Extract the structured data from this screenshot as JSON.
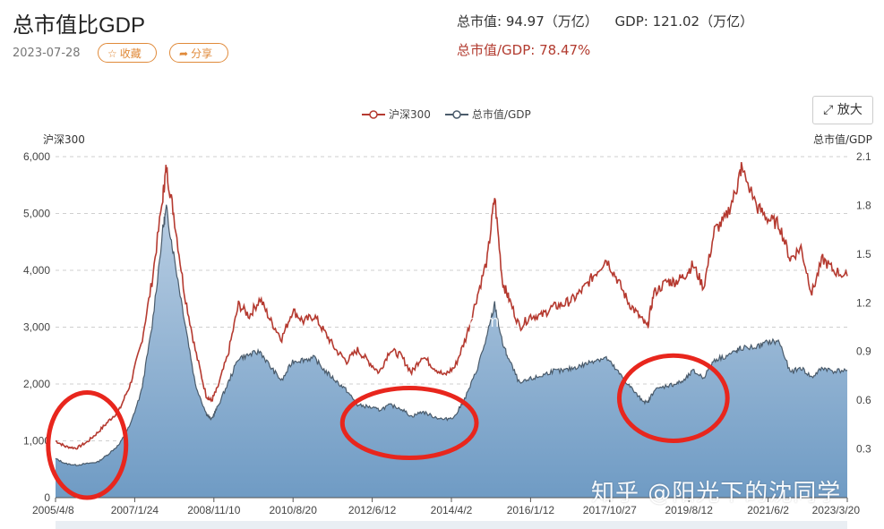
{
  "page": {
    "title": "总市值比GDP",
    "date": "2023-07-28",
    "favorite_label": "收藏",
    "share_label": "分享",
    "market_cap_label": "总市值: 94.97（万亿）",
    "gdp_label": "GDP: 121.02（万亿）",
    "ratio_label": "总市值/GDP: 78.47%",
    "expand_label": "放大",
    "watermark": "知乎 @阳光下的沈同学",
    "site_watermark": "legulegu.com"
  },
  "colors": {
    "hs300": "#b53a30",
    "ratio_line": "#4a5b6b",
    "ratio_fill_top": "#a9c2dc",
    "ratio_fill_bottom": "#6f9bc4",
    "circle": "#e8261d"
  },
  "chart_data": {
    "type": "line",
    "legend": [
      "沪深300",
      "总市值/GDP"
    ],
    "y_left": {
      "label": "沪深300",
      "ticks": [
        "0",
        "1,000",
        "2,000",
        "3,000",
        "4,000",
        "5,000",
        "6,000"
      ],
      "range": [
        0,
        6000
      ]
    },
    "y_right": {
      "label": "总市值/GDP",
      "ticks": [
        "0.3",
        "0.6",
        "0.9",
        "1.2",
        "1.5",
        "1.8",
        "2.1"
      ],
      "range": [
        0,
        2.1
      ]
    },
    "x_ticks": [
      "2005/4/8",
      "2007/1/24",
      "2008/11/10",
      "2010/8/20",
      "2012/6/12",
      "2014/4/2",
      "2016/1/12",
      "2017/10/27",
      "2019/8/12",
      "2021/6/2",
      "2023/3/20"
    ],
    "x_range": [
      2005.27,
      2023.57
    ],
    "series": [
      {
        "name": "沪深300",
        "points": [
          [
            2005.27,
            1000
          ],
          [
            2005.5,
            900
          ],
          [
            2005.75,
            870
          ],
          [
            2006.0,
            980
          ],
          [
            2006.25,
            1150
          ],
          [
            2006.5,
            1350
          ],
          [
            2006.75,
            1550
          ],
          [
            2007.0,
            2000
          ],
          [
            2007.25,
            2700
          ],
          [
            2007.5,
            3800
          ],
          [
            2007.75,
            5300
          ],
          [
            2007.83,
            5800
          ],
          [
            2008.0,
            5000
          ],
          [
            2008.25,
            3600
          ],
          [
            2008.5,
            2600
          ],
          [
            2008.75,
            1800
          ],
          [
            2008.87,
            1700
          ],
          [
            2009.0,
            1900
          ],
          [
            2009.25,
            2500
          ],
          [
            2009.5,
            3400
          ],
          [
            2009.75,
            3200
          ],
          [
            2010.0,
            3500
          ],
          [
            2010.25,
            3100
          ],
          [
            2010.5,
            2800
          ],
          [
            2010.75,
            3300
          ],
          [
            2011.0,
            3100
          ],
          [
            2011.25,
            3200
          ],
          [
            2011.5,
            2900
          ],
          [
            2011.75,
            2600
          ],
          [
            2012.0,
            2400
          ],
          [
            2012.25,
            2600
          ],
          [
            2012.5,
            2400
          ],
          [
            2012.75,
            2200
          ],
          [
            2013.0,
            2600
          ],
          [
            2013.25,
            2500
          ],
          [
            2013.5,
            2200
          ],
          [
            2013.75,
            2500
          ],
          [
            2014.0,
            2300
          ],
          [
            2014.25,
            2150
          ],
          [
            2014.5,
            2300
          ],
          [
            2014.75,
            2800
          ],
          [
            2015.0,
            3500
          ],
          [
            2015.25,
            4200
          ],
          [
            2015.42,
            5300
          ],
          [
            2015.6,
            3800
          ],
          [
            2015.75,
            3500
          ],
          [
            2016.0,
            3000
          ],
          [
            2016.25,
            3200
          ],
          [
            2016.5,
            3200
          ],
          [
            2016.75,
            3350
          ],
          [
            2017.0,
            3400
          ],
          [
            2017.25,
            3500
          ],
          [
            2017.5,
            3700
          ],
          [
            2017.75,
            3950
          ],
          [
            2018.0,
            4200
          ],
          [
            2018.25,
            3850
          ],
          [
            2018.5,
            3450
          ],
          [
            2018.75,
            3200
          ],
          [
            2018.95,
            3000
          ],
          [
            2019.1,
            3600
          ],
          [
            2019.4,
            3800
          ],
          [
            2019.6,
            3800
          ],
          [
            2019.8,
            3900
          ],
          [
            2020.0,
            4100
          ],
          [
            2020.25,
            3700
          ],
          [
            2020.5,
            4700
          ],
          [
            2020.75,
            4900
          ],
          [
            2021.0,
            5400
          ],
          [
            2021.12,
            5800
          ],
          [
            2021.5,
            5100
          ],
          [
            2021.75,
            4900
          ],
          [
            2022.0,
            4800
          ],
          [
            2022.25,
            4200
          ],
          [
            2022.5,
            4400
          ],
          [
            2022.75,
            3600
          ],
          [
            2023.0,
            4200
          ],
          [
            2023.25,
            4000
          ],
          [
            2023.57,
            3900
          ]
        ]
      },
      {
        "name": "总市值/GDP",
        "points": [
          [
            2005.27,
            0.24
          ],
          [
            2005.5,
            0.21
          ],
          [
            2005.75,
            0.2
          ],
          [
            2006.0,
            0.21
          ],
          [
            2006.25,
            0.22
          ],
          [
            2006.5,
            0.27
          ],
          [
            2006.75,
            0.33
          ],
          [
            2007.0,
            0.45
          ],
          [
            2007.25,
            0.65
          ],
          [
            2007.5,
            1.05
          ],
          [
            2007.75,
            1.65
          ],
          [
            2007.83,
            1.78
          ],
          [
            2008.0,
            1.5
          ],
          [
            2008.25,
            1.1
          ],
          [
            2008.5,
            0.7
          ],
          [
            2008.75,
            0.52
          ],
          [
            2008.87,
            0.48
          ],
          [
            2009.0,
            0.55
          ],
          [
            2009.25,
            0.7
          ],
          [
            2009.5,
            0.86
          ],
          [
            2009.75,
            0.88
          ],
          [
            2010.0,
            0.9
          ],
          [
            2010.25,
            0.8
          ],
          [
            2010.5,
            0.72
          ],
          [
            2010.75,
            0.84
          ],
          [
            2011.0,
            0.85
          ],
          [
            2011.25,
            0.86
          ],
          [
            2011.5,
            0.78
          ],
          [
            2011.75,
            0.72
          ],
          [
            2012.0,
            0.66
          ],
          [
            2012.25,
            0.57
          ],
          [
            2012.5,
            0.56
          ],
          [
            2012.75,
            0.54
          ],
          [
            2013.0,
            0.57
          ],
          [
            2013.25,
            0.55
          ],
          [
            2013.5,
            0.5
          ],
          [
            2013.75,
            0.53
          ],
          [
            2014.0,
            0.5
          ],
          [
            2014.25,
            0.48
          ],
          [
            2014.5,
            0.5
          ],
          [
            2014.75,
            0.62
          ],
          [
            2015.0,
            0.78
          ],
          [
            2015.25,
            1.0
          ],
          [
            2015.42,
            1.19
          ],
          [
            2015.6,
            0.95
          ],
          [
            2015.75,
            0.85
          ],
          [
            2016.0,
            0.7
          ],
          [
            2016.25,
            0.73
          ],
          [
            2016.5,
            0.75
          ],
          [
            2016.75,
            0.78
          ],
          [
            2017.0,
            0.78
          ],
          [
            2017.25,
            0.8
          ],
          [
            2017.5,
            0.82
          ],
          [
            2017.75,
            0.85
          ],
          [
            2018.0,
            0.86
          ],
          [
            2018.25,
            0.78
          ],
          [
            2018.5,
            0.7
          ],
          [
            2018.75,
            0.62
          ],
          [
            2018.95,
            0.58
          ],
          [
            2019.1,
            0.66
          ],
          [
            2019.4,
            0.69
          ],
          [
            2019.6,
            0.7
          ],
          [
            2019.8,
            0.72
          ],
          [
            2020.0,
            0.78
          ],
          [
            2020.25,
            0.74
          ],
          [
            2020.5,
            0.85
          ],
          [
            2020.75,
            0.87
          ],
          [
            2021.0,
            0.9
          ],
          [
            2021.12,
            0.92
          ],
          [
            2021.5,
            0.93
          ],
          [
            2021.75,
            0.96
          ],
          [
            2022.0,
            0.96
          ],
          [
            2022.25,
            0.77
          ],
          [
            2022.5,
            0.8
          ],
          [
            2022.75,
            0.74
          ],
          [
            2023.0,
            0.8
          ],
          [
            2023.25,
            0.78
          ],
          [
            2023.57,
            0.785
          ]
        ]
      }
    ],
    "annotations": [
      {
        "type": "ellipse",
        "x_range": [
          2005.1,
          2006.9
        ],
        "y_range": [
          0,
          1850
        ]
      },
      {
        "type": "ellipse",
        "x_range": [
          2011.9,
          2015.0
        ],
        "y_range": [
          700,
          1930
        ]
      },
      {
        "type": "ellipse",
        "x_range": [
          2018.3,
          2020.8
        ],
        "y_range": [
          1000,
          2500
        ]
      }
    ],
    "grid": true
  }
}
